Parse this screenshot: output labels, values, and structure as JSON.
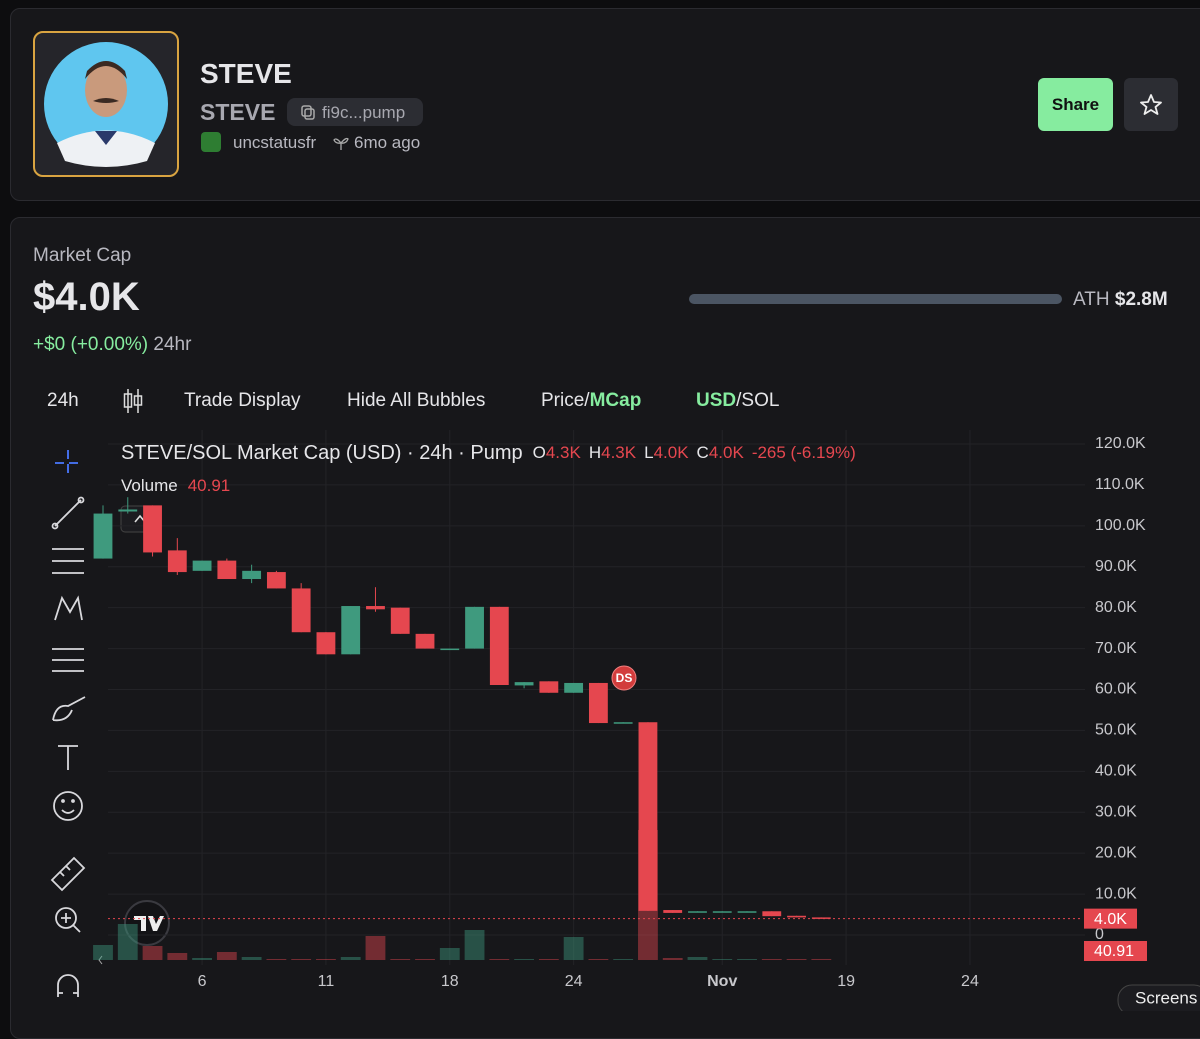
{
  "header": {
    "name": "STEVE",
    "ticker": "STEVE",
    "address": "fi9c...pump",
    "creator": "uncstatusfr",
    "age": "6mo ago",
    "share": "Share"
  },
  "market": {
    "label": "Market Cap",
    "value": "$4.0K",
    "change": "+$0 (+0.00%)",
    "period": "24hr",
    "ath_label": "ATH",
    "ath_value": "$2.8M"
  },
  "toolbar": {
    "interval": "24h",
    "trade_display": "Trade Display",
    "bubbles": "Hide All Bubbles",
    "price": "Price/",
    "mcap": "MCap",
    "usd": "USD",
    "sol": "/SOL"
  },
  "screenshot": "Screens",
  "chart_data": {
    "type": "candlestick",
    "title": "STEVE/SOL Market Cap (USD) · 24h · Pump",
    "ohlc_legend": [
      {
        "key": "O",
        "value": "4.3K"
      },
      {
        "key": "H",
        "value": "4.3K"
      },
      {
        "key": "L",
        "value": "4.0K"
      },
      {
        "key": "C",
        "value": "4.0K"
      }
    ],
    "change": "-265 (-6.19%)",
    "volume_name": "Volume",
    "volume_label": "40.91",
    "badge": "DS",
    "price_line": {
      "value": 4000,
      "label": "4.0K"
    },
    "up_color": "#3f9a7e",
    "down_color": "#e5474f",
    "categories": [
      null,
      null,
      null,
      null,
      "6",
      null,
      null,
      null,
      null,
      "11",
      null,
      null,
      null,
      null,
      "18",
      null,
      null,
      null,
      null,
      "24",
      null,
      null,
      null,
      null,
      null,
      "Nov",
      null,
      null,
      null,
      null,
      "19",
      null,
      null,
      null,
      null,
      "24",
      null,
      null,
      null
    ],
    "open": [
      92000,
      103500,
      105000,
      94000,
      89000,
      91500,
      87000,
      88700,
      84700,
      74000,
      68600,
      80400,
      80000,
      73600,
      69900,
      70000,
      80200,
      61000,
      62000,
      59200,
      61600,
      51800,
      52000,
      6100,
      5500,
      5600,
      5700,
      5800,
      4700,
      4300,
      null,
      null,
      null,
      null,
      null,
      null,
      null,
      null,
      null
    ],
    "high": [
      105000,
      107000,
      105000,
      97000,
      91500,
      92000,
      90500,
      89000,
      86000,
      74000,
      80400,
      85000,
      80000,
      73600,
      70000,
      80200,
      80200,
      61800,
      62000,
      61600,
      61600,
      52000,
      52000,
      6100,
      5800,
      5800,
      5800,
      5800,
      4700,
      4300,
      null,
      null,
      null,
      null,
      null,
      null,
      null,
      null,
      null
    ],
    "low": [
      92000,
      103000,
      92500,
      88000,
      89000,
      87000,
      86000,
      84700,
      74000,
      68600,
      68600,
      79000,
      73600,
      70000,
      69900,
      70000,
      61100,
      60300,
      59200,
      59200,
      51800,
      51800,
      5900,
      5400,
      5500,
      5600,
      5700,
      4600,
      4300,
      4000,
      null,
      null,
      null,
      null,
      null,
      null,
      null,
      null,
      null
    ],
    "close": [
      103000,
      104000,
      93500,
      88700,
      91500,
      87000,
      89000,
      84700,
      74000,
      68600,
      80400,
      79600,
      73600,
      70000,
      70000,
      80200,
      61100,
      61800,
      59200,
      61600,
      51800,
      52000,
      5900,
      5400,
      5800,
      5800,
      5800,
      4600,
      4300,
      4000,
      null,
      null,
      null,
      null,
      null,
      null,
      null,
      null,
      null
    ],
    "volume": [
      600,
      1440,
      560,
      280,
      80,
      320,
      120,
      40,
      40,
      40,
      120,
      960,
      40,
      40,
      480,
      1200,
      40,
      40,
      40,
      920,
      40,
      40,
      5200,
      80,
      120,
      40,
      40,
      40,
      40,
      40.91,
      null,
      null,
      null,
      null,
      null,
      null,
      null,
      null,
      null
    ],
    "ylim": [
      0,
      120000
    ],
    "yticks": [
      0,
      {
        "value": 10000,
        "label": "10.0K"
      },
      {
        "value": 20000,
        "label": "20.0K"
      },
      {
        "value": 30000,
        "label": "30.0K"
      },
      {
        "value": 40000,
        "label": "40.0K"
      },
      {
        "value": 50000,
        "label": "50.0K"
      },
      {
        "value": 60000,
        "label": "60.0K"
      },
      {
        "value": 70000,
        "label": "70.0K"
      },
      {
        "value": 80000,
        "label": "80.0K"
      },
      {
        "value": 90000,
        "label": "90.0K"
      },
      {
        "value": 100000,
        "label": "100.0K"
      },
      {
        "value": 110000,
        "label": "110.0K"
      },
      {
        "value": 120000,
        "label": "120.0K"
      }
    ],
    "grid": true
  }
}
